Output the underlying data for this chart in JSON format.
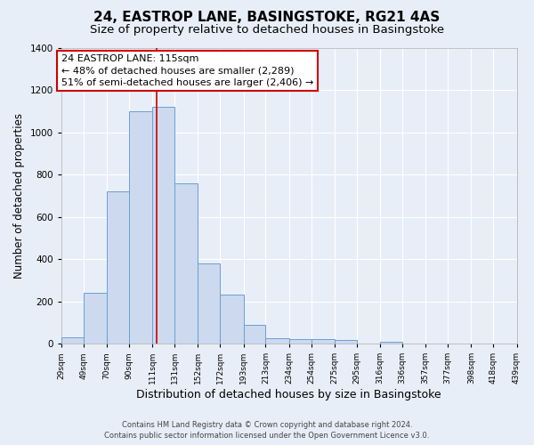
{
  "title": "24, EASTROP LANE, BASINGSTOKE, RG21 4AS",
  "subtitle": "Size of property relative to detached houses in Basingstoke",
  "xlabel": "Distribution of detached houses by size in Basingstoke",
  "ylabel": "Number of detached properties",
  "bar_edges": [
    29,
    49,
    70,
    90,
    111,
    131,
    152,
    172,
    193,
    213,
    234,
    254,
    275,
    295,
    316,
    336,
    357,
    377,
    398,
    418,
    439
  ],
  "bar_heights": [
    30,
    240,
    720,
    1100,
    1120,
    760,
    380,
    230,
    90,
    25,
    20,
    20,
    15,
    0,
    10,
    0,
    0,
    0,
    0,
    0
  ],
  "bar_color": "#ccd9ee",
  "bar_edge_color": "#6b9fd4",
  "vline_x": 115,
  "vline_color": "#cc0000",
  "annotation_line1": "24 EASTROP LANE: 115sqm",
  "annotation_line2": "← 48% of detached houses are smaller (2,289)",
  "annotation_line3": "51% of semi-detached houses are larger (2,406) →",
  "annotation_box_color": "#ffffff",
  "annotation_box_edge": "#cc0000",
  "ylim": [
    0,
    1400
  ],
  "yticks": [
    0,
    200,
    400,
    600,
    800,
    1000,
    1200,
    1400
  ],
  "tick_labels": [
    "29sqm",
    "49sqm",
    "70sqm",
    "90sqm",
    "111sqm",
    "131sqm",
    "152sqm",
    "172sqm",
    "193sqm",
    "213sqm",
    "234sqm",
    "254sqm",
    "275sqm",
    "295sqm",
    "316sqm",
    "336sqm",
    "357sqm",
    "377sqm",
    "398sqm",
    "418sqm",
    "439sqm"
  ],
  "footer1": "Contains HM Land Registry data © Crown copyright and database right 2024.",
  "footer2": "Contains public sector information licensed under the Open Government Licence v3.0.",
  "bg_color": "#e8eef8",
  "grid_color": "#ffffff",
  "title_fontsize": 11,
  "subtitle_fontsize": 9.5,
  "xlabel_fontsize": 9,
  "ylabel_fontsize": 8.5,
  "annotation_fontsize": 8,
  "footer_fontsize": 6
}
